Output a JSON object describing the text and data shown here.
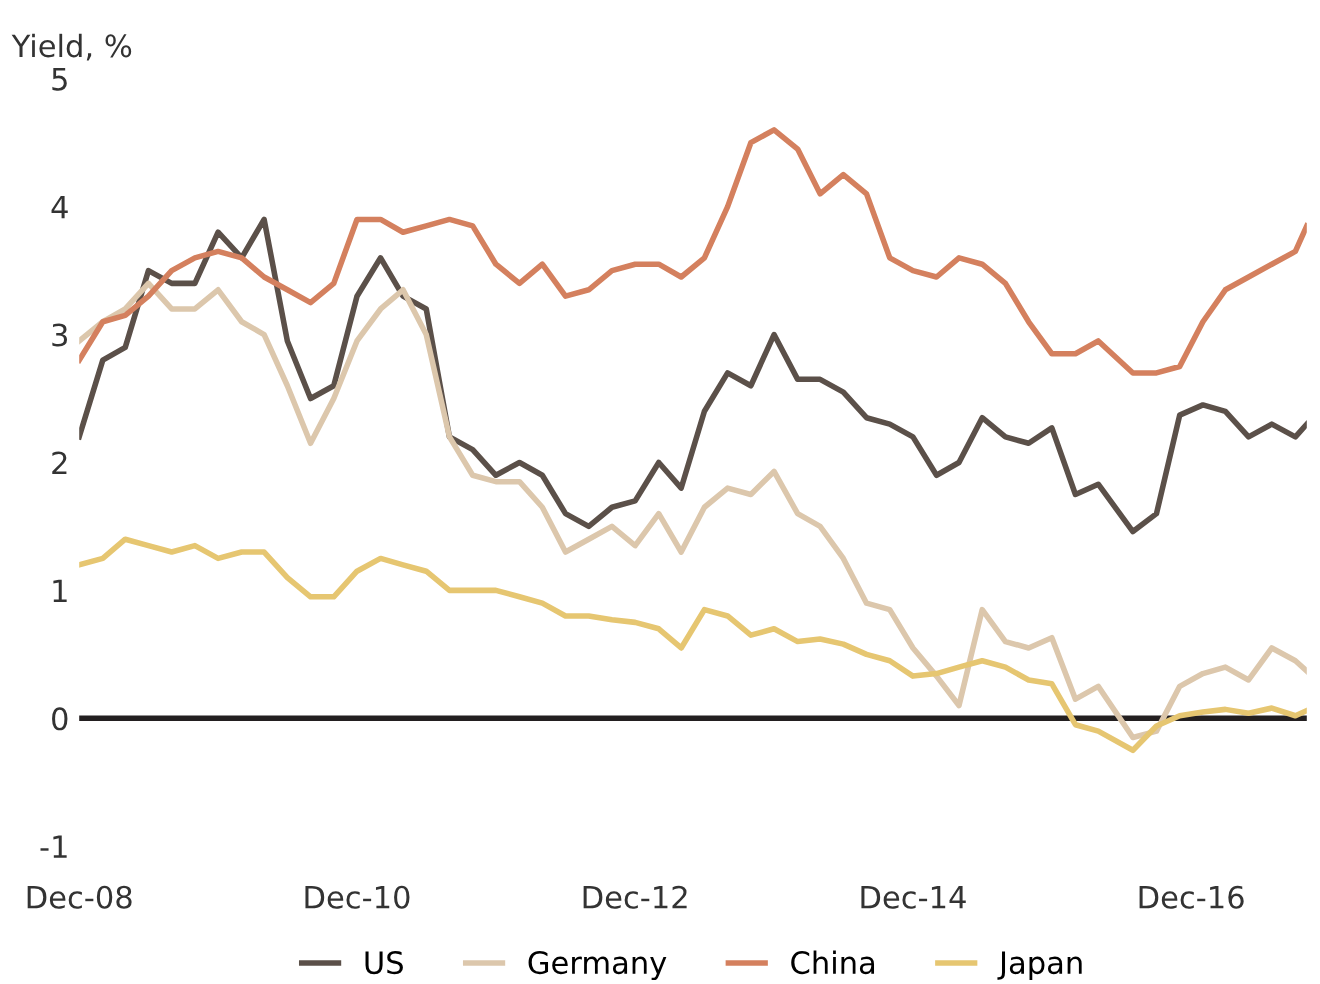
{
  "chart_data": {
    "type": "line",
    "ylabel": "Yield, %",
    "x": [
      "2008-12",
      "2009-02",
      "2009-04",
      "2009-06",
      "2009-08",
      "2009-10",
      "2009-12",
      "2010-02",
      "2010-04",
      "2010-06",
      "2010-08",
      "2010-10",
      "2010-12",
      "2011-02",
      "2011-04",
      "2011-06",
      "2011-08",
      "2011-10",
      "2011-12",
      "2012-02",
      "2012-04",
      "2012-06",
      "2012-08",
      "2012-10",
      "2012-12",
      "2013-02",
      "2013-04",
      "2013-06",
      "2013-08",
      "2013-10",
      "2013-12",
      "2014-02",
      "2014-04",
      "2014-06",
      "2014-08",
      "2014-10",
      "2014-12",
      "2015-02",
      "2015-04",
      "2015-06",
      "2015-08",
      "2015-10",
      "2015-12",
      "2016-02",
      "2016-04",
      "2016-07",
      "2016-09",
      "2016-11",
      "2017-01",
      "2017-03",
      "2017-05",
      "2017-07",
      "2017-09",
      "2017-10"
    ],
    "series": [
      {
        "name": "US",
        "color": "#5b5049",
        "values": [
          2.2,
          2.8,
          2.9,
          3.5,
          3.4,
          3.4,
          3.8,
          3.6,
          3.9,
          2.95,
          2.5,
          2.6,
          3.3,
          3.6,
          3.3,
          3.2,
          2.2,
          2.1,
          1.9,
          2.0,
          1.9,
          1.6,
          1.5,
          1.65,
          1.7,
          2.0,
          1.8,
          2.4,
          2.7,
          2.6,
          3.0,
          2.65,
          2.65,
          2.55,
          2.35,
          2.3,
          2.2,
          1.9,
          2.0,
          2.35,
          2.2,
          2.15,
          2.27,
          1.75,
          1.83,
          1.46,
          1.6,
          2.37,
          2.45,
          2.4,
          2.2,
          2.3,
          2.2,
          2.3
        ]
      },
      {
        "name": "Germany",
        "color": "#dcc7ac",
        "values": [
          2.95,
          3.1,
          3.2,
          3.4,
          3.2,
          3.2,
          3.35,
          3.1,
          3.0,
          2.6,
          2.15,
          2.5,
          2.95,
          3.2,
          3.35,
          3.0,
          2.2,
          1.9,
          1.85,
          1.85,
          1.65,
          1.3,
          1.4,
          1.5,
          1.35,
          1.6,
          1.3,
          1.65,
          1.8,
          1.75,
          1.93,
          1.6,
          1.5,
          1.25,
          0.9,
          0.85,
          0.55,
          0.33,
          0.1,
          0.85,
          0.6,
          0.55,
          0.63,
          0.15,
          0.25,
          -0.15,
          -0.1,
          0.25,
          0.35,
          0.4,
          0.3,
          0.55,
          0.45,
          0.37
        ]
      },
      {
        "name": "China",
        "color": "#d4805e",
        "values": [
          2.8,
          3.1,
          3.15,
          3.3,
          3.5,
          3.6,
          3.65,
          3.6,
          3.45,
          3.35,
          3.25,
          3.4,
          3.9,
          3.9,
          3.8,
          3.85,
          3.9,
          3.85,
          3.55,
          3.4,
          3.55,
          3.3,
          3.35,
          3.5,
          3.55,
          3.55,
          3.45,
          3.6,
          4.0,
          4.5,
          4.6,
          4.45,
          4.1,
          4.25,
          4.1,
          3.6,
          3.5,
          3.45,
          3.6,
          3.55,
          3.4,
          3.1,
          2.85,
          2.85,
          2.95,
          2.7,
          2.7,
          2.75,
          3.1,
          3.35,
          3.45,
          3.55,
          3.65,
          3.85
        ]
      },
      {
        "name": "Japan",
        "color": "#e6c671",
        "values": [
          1.2,
          1.25,
          1.4,
          1.35,
          1.3,
          1.35,
          1.25,
          1.3,
          1.3,
          1.1,
          0.95,
          0.95,
          1.15,
          1.25,
          1.2,
          1.15,
          1.0,
          1.0,
          1.0,
          0.95,
          0.9,
          0.8,
          0.8,
          0.77,
          0.75,
          0.7,
          0.55,
          0.85,
          0.8,
          0.65,
          0.7,
          0.6,
          0.62,
          0.58,
          0.5,
          0.45,
          0.33,
          0.35,
          0.4,
          0.45,
          0.4,
          0.3,
          0.27,
          -0.05,
          -0.1,
          -0.25,
          -0.06,
          0.02,
          0.05,
          0.07,
          0.04,
          0.08,
          0.02,
          0.06
        ]
      }
    ],
    "xlim": [
      "2008-12",
      "2017-10"
    ],
    "xticks": [
      {
        "value": "2008-12",
        "label": "Dec-08"
      },
      {
        "value": "2010-12",
        "label": "Dec-10"
      },
      {
        "value": "2012-12",
        "label": "Dec-12"
      },
      {
        "value": "2014-12",
        "label": "Dec-14"
      },
      {
        "value": "2016-12",
        "label": "Dec-16"
      }
    ],
    "ylim": [
      -1,
      5
    ],
    "yticks": [
      -1,
      0,
      1,
      2,
      3,
      4,
      5
    ],
    "ref_lines": [
      {
        "axis": "y",
        "value": 0,
        "color": "#231f20"
      }
    ],
    "grid": false,
    "legend": "bottom",
    "line_style": "solid"
  }
}
